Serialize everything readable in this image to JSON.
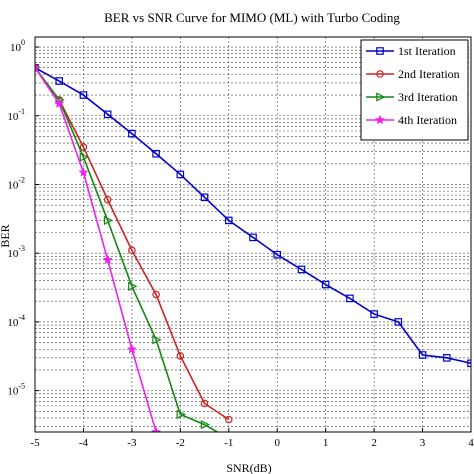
{
  "chart_data": {
    "type": "line",
    "title": "BER vs SNR Curve for MIMO (ML) with Turbo Coding",
    "xlabel": "SNR(dB)",
    "ylabel": "BER",
    "xlim": [
      -5,
      4
    ],
    "ylim": [
      2.5e-06,
      1.4
    ],
    "yscale": "log",
    "grid": true,
    "legend_position": "top-right",
    "xticks": [
      "-5",
      "-4",
      "-3",
      "-2",
      "-1",
      "0",
      "1",
      "2",
      "3",
      "4"
    ],
    "yticks": [
      {
        "base": "10",
        "exp": "0"
      },
      {
        "base": "10",
        "exp": "-1"
      },
      {
        "base": "10",
        "exp": "-2"
      },
      {
        "base": "10",
        "exp": "-3"
      },
      {
        "base": "10",
        "exp": "-4"
      },
      {
        "base": "10",
        "exp": "-5"
      }
    ],
    "series": [
      {
        "name": "1st Iteration",
        "color": "#0000cc",
        "marker": "square",
        "x": [
          -5,
          -4.5,
          -4,
          -3.5,
          -3,
          -2.5,
          -2,
          -1.5,
          -1,
          -0.5,
          0,
          0.5,
          1,
          1.5,
          2,
          2.5,
          3,
          3.5,
          4
        ],
        "y": [
          0.5,
          0.32,
          0.2,
          0.105,
          0.055,
          0.028,
          0.014,
          0.0065,
          0.003,
          0.0017,
          0.00095,
          0.00058,
          0.00035,
          0.00022,
          0.00013,
          0.0001,
          3.3e-05,
          3e-05,
          2.5e-05
        ]
      },
      {
        "name": "2nd Iteration",
        "color": "#cc2222",
        "marker": "circle",
        "x": [
          -5,
          -4.5,
          -4,
          -3.5,
          -3,
          -2.5,
          -2,
          -1.5,
          -1
        ],
        "y": [
          0.5,
          0.17,
          0.035,
          0.006,
          0.0011,
          0.00025,
          3.2e-05,
          6.5e-06,
          3.8e-06
        ]
      },
      {
        "name": "3rd Iteration",
        "color": "#118811",
        "marker": "triangle-right",
        "x": [
          -5,
          -4.5,
          -4,
          -3.5,
          -3,
          -2.5,
          -2,
          -1.5,
          -1
        ],
        "y": [
          0.5,
          0.17,
          0.025,
          0.003,
          0.00033,
          5.5e-05,
          4.5e-06,
          3.2e-06,
          2e-06
        ]
      },
      {
        "name": "4th Iteration",
        "color": "#ee22ee",
        "marker": "star",
        "x": [
          -5,
          -4.5,
          -4,
          -3.5,
          -3,
          -2.5
        ],
        "y": [
          0.5,
          0.15,
          0.015,
          0.0008,
          4e-05,
          2.5e-06
        ]
      }
    ]
  }
}
